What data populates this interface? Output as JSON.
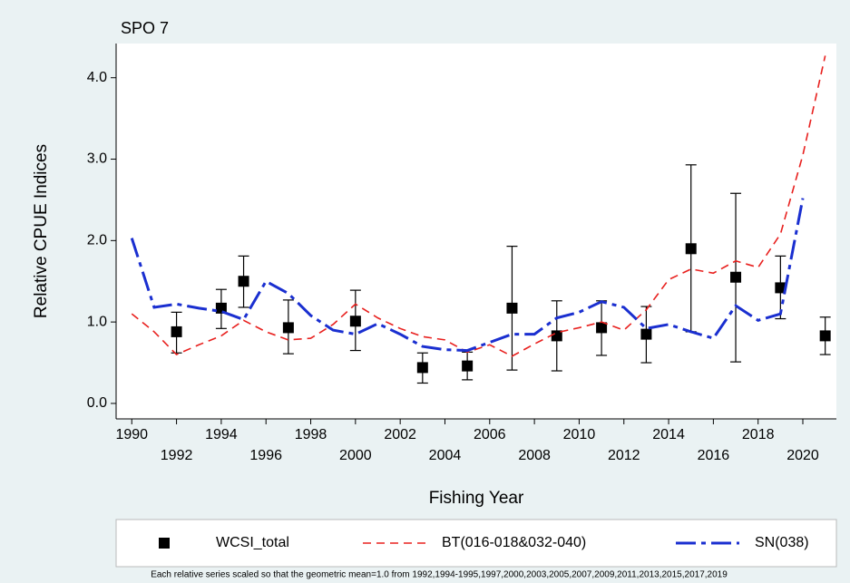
{
  "chart_data": {
    "type": "line",
    "title": "SPO 7",
    "x_label": "Fishing Year",
    "y_label": "Relative CPUE Indices",
    "footnote": "Each relative series scaled so that the geometric mean=1.0 from 1992,1994-1995,1997,2000,2003,2005,2007,2009,2011,2013,2015,2017,2019",
    "xlim": [
      1989.3,
      2021.5
    ],
    "ylim": [
      -0.19,
      4.42
    ],
    "xticks": [
      1990,
      1992,
      1994,
      1996,
      1998,
      2000,
      2002,
      2004,
      2006,
      2008,
      2010,
      2012,
      2014,
      2016,
      2018,
      2020
    ],
    "yticks": [
      {
        "value": 0,
        "label": "0.0"
      },
      {
        "value": 1,
        "label": "1.0"
      },
      {
        "value": 2,
        "label": "2.0"
      },
      {
        "value": 3,
        "label": "3.0"
      },
      {
        "value": 4,
        "label": "4.0"
      }
    ],
    "series": [
      {
        "name": "WCSI_total",
        "type": "scatter",
        "color": "#000000",
        "x": [
          1992,
          1994,
          1995,
          1997,
          2000,
          2003,
          2005,
          2007,
          2009,
          2011,
          2013,
          2015,
          2017,
          2019,
          2021
        ],
        "values": [
          0.88,
          1.17,
          1.5,
          0.93,
          1.01,
          0.44,
          0.46,
          1.17,
          0.83,
          0.93,
          0.85,
          1.9,
          1.55,
          1.42,
          0.83
        ],
        "lower": [
          0.62,
          0.92,
          1.18,
          0.61,
          0.65,
          0.25,
          0.29,
          0.41,
          0.4,
          0.59,
          0.5,
          0.88,
          0.51,
          1.04,
          0.6
        ],
        "upper": [
          1.12,
          1.4,
          1.81,
          1.27,
          1.39,
          0.62,
          0.63,
          1.93,
          1.26,
          1.26,
          1.19,
          2.93,
          2.58,
          1.81,
          1.06
        ]
      },
      {
        "name": "BT(016-018&032-040)",
        "type": "line",
        "color": "#e8201e",
        "dash": "9,6",
        "x": [
          1990,
          1991,
          1992,
          1993,
          1994,
          1995,
          1996,
          1997,
          1998,
          1999,
          2000,
          2001,
          2002,
          2003,
          2004,
          2005,
          2006,
          2007,
          2008,
          2009,
          2010,
          2011,
          2012,
          2013,
          2014,
          2015,
          2016,
          2017,
          2018,
          2019,
          2020,
          2021
        ],
        "values": [
          1.1,
          0.88,
          0.6,
          0.72,
          0.83,
          1.02,
          0.88,
          0.78,
          0.8,
          0.97,
          1.22,
          1.05,
          0.92,
          0.82,
          0.78,
          0.63,
          0.72,
          0.58,
          0.73,
          0.87,
          0.93,
          1.0,
          0.9,
          1.15,
          1.52,
          1.65,
          1.6,
          1.75,
          1.67,
          2.08,
          3.05,
          4.27
        ]
      },
      {
        "name": "SN(038)",
        "type": "line",
        "color": "#1a2fd0",
        "dash": "22,6,5,6",
        "x": [
          1990,
          1991,
          1992,
          1993,
          1994,
          1995,
          1996,
          1997,
          1998,
          1999,
          2000,
          2001,
          2002,
          2003,
          2004,
          2005,
          2006,
          2007,
          2008,
          2009,
          2010,
          2011,
          2012,
          2013,
          2014,
          2015,
          2016,
          2017,
          2018,
          2019,
          2020
        ],
        "values": [
          2.03,
          1.18,
          1.22,
          1.17,
          1.13,
          1.03,
          1.5,
          1.35,
          1.08,
          0.9,
          0.85,
          0.98,
          0.85,
          0.7,
          0.66,
          0.65,
          0.75,
          0.85,
          0.85,
          1.05,
          1.12,
          1.25,
          1.18,
          0.92,
          0.97,
          0.88,
          0.8,
          1.2,
          1.02,
          1.1,
          2.52
        ]
      }
    ]
  }
}
